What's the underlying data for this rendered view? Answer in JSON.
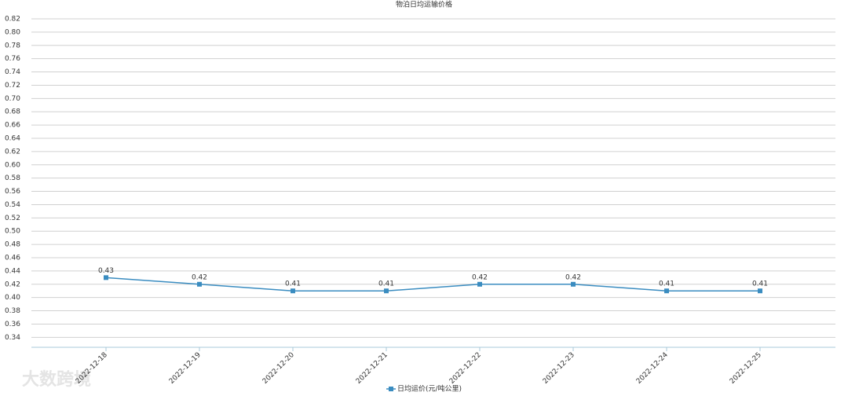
{
  "chart_data": {
    "type": "line",
    "title": "物泊日均运输价格",
    "categories": [
      "2022-12-18",
      "2022-12-19",
      "2022-12-20",
      "2022-12-21",
      "2022-12-22",
      "2022-12-23",
      "2022-12-24",
      "2022-12-25"
    ],
    "series": [
      {
        "name": "日均运价(元/吨公里)",
        "color": "#3a8cc0",
        "values": [
          0.43,
          0.42,
          0.41,
          0.41,
          0.42,
          0.42,
          0.41,
          0.41
        ]
      }
    ],
    "ylim": [
      0.325,
      0.82
    ],
    "yticks": [
      0.34,
      0.36,
      0.38,
      {
        "value": 0.4,
        "label": "0.40"
      },
      0.42,
      0.44,
      0.46,
      0.48,
      {
        "value": 0.5,
        "label": "0.50"
      },
      0.52,
      0.54,
      0.56,
      0.58,
      {
        "value": 0.6,
        "label": "0.60"
      },
      0.62,
      0.64,
      0.66,
      0.68,
      {
        "value": 0.7,
        "label": "0.70"
      },
      0.72,
      0.74,
      0.76,
      0.78,
      {
        "value": 0.8,
        "label": "0.80"
      },
      0.82
    ],
    "grid": true,
    "legend": "bottom",
    "watermark": "大数跨境"
  }
}
